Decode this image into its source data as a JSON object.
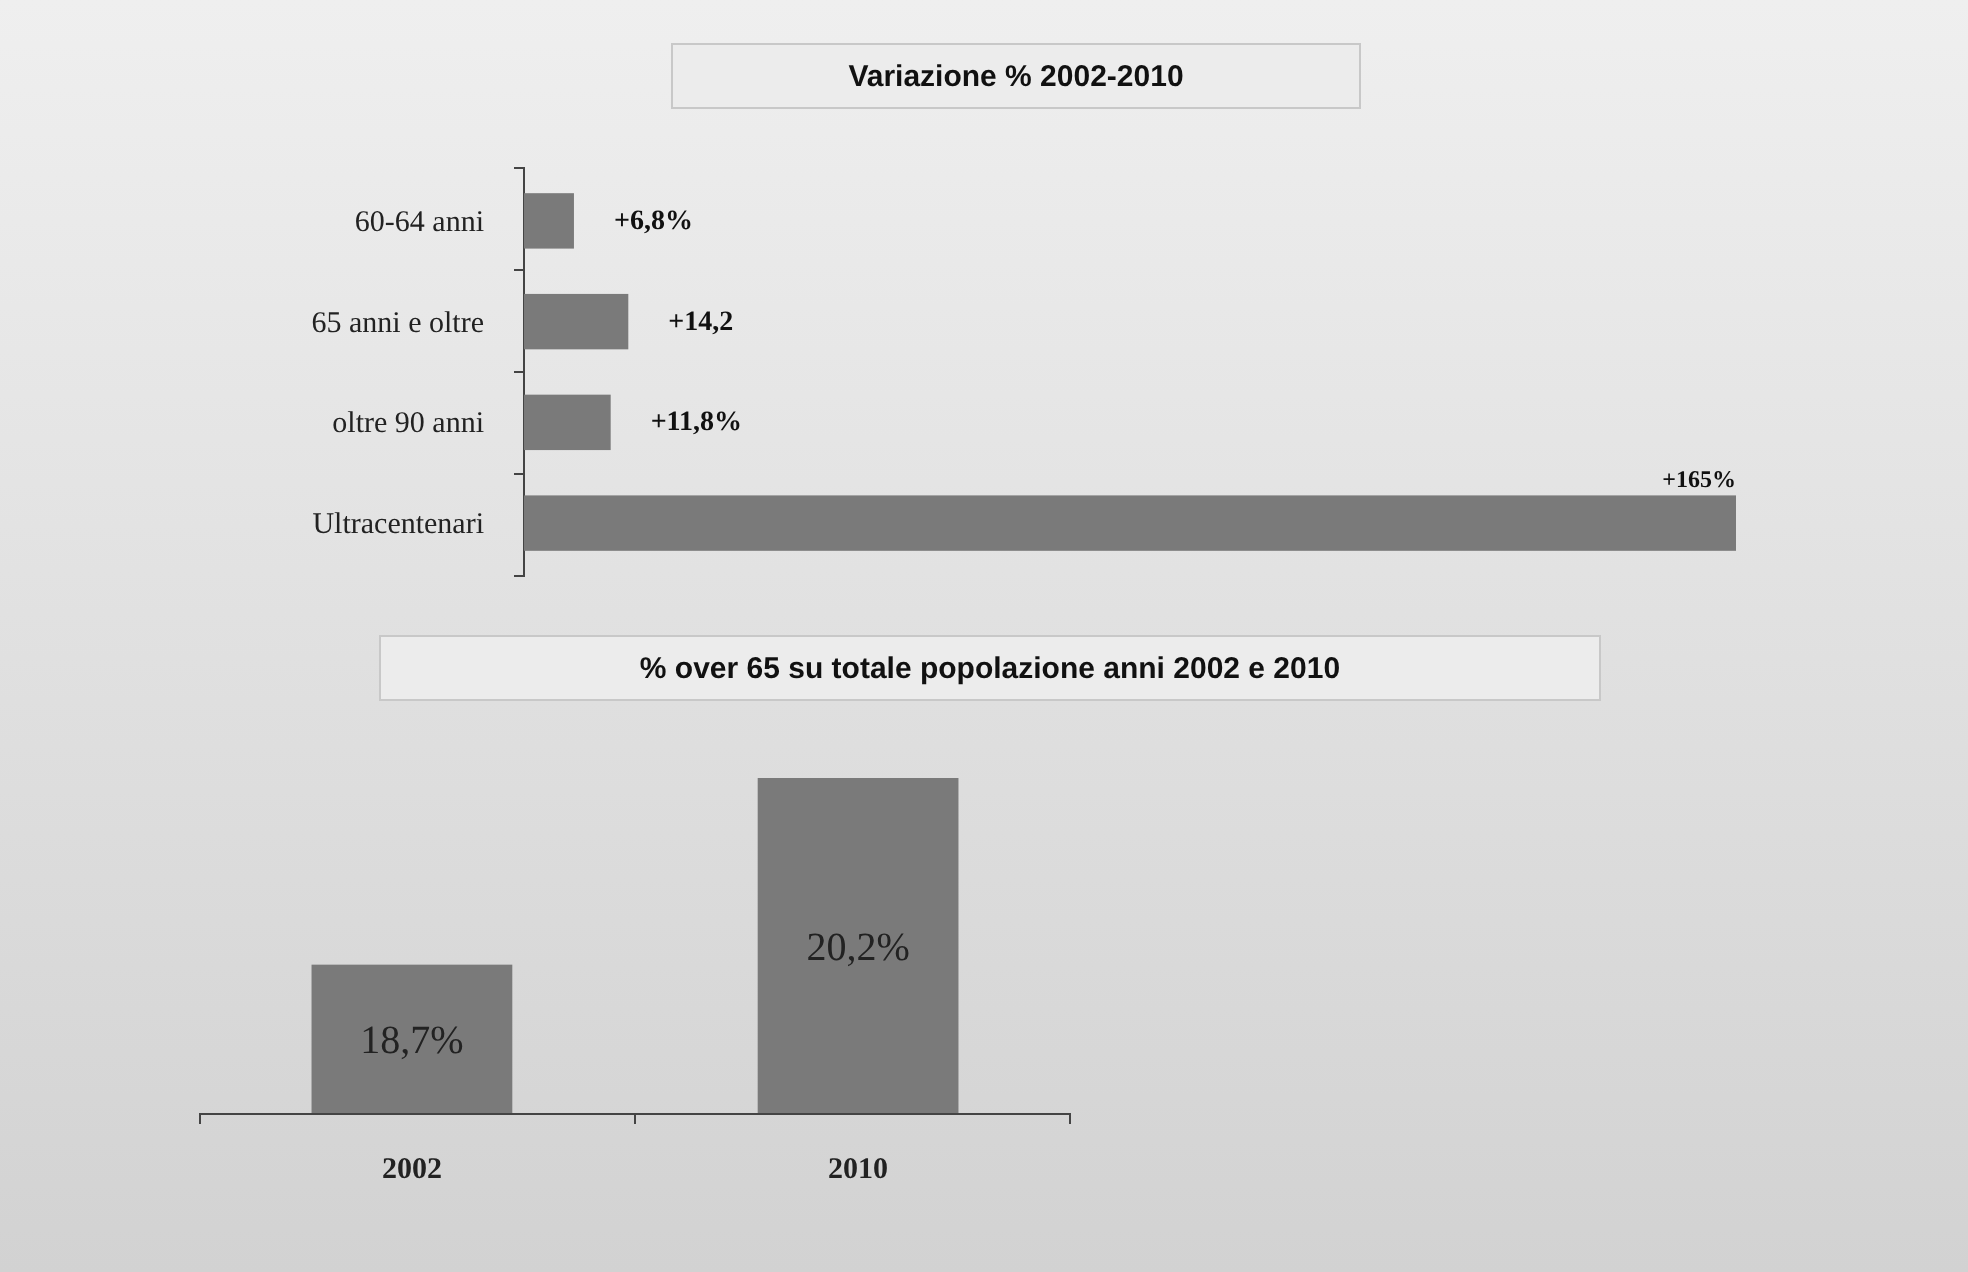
{
  "chart_data": [
    {
      "type": "bar",
      "orientation": "horizontal",
      "title": "Variazione % 2002-2010",
      "categories": [
        "60-64 anni",
        "65 anni e oltre",
        "oltre 90 anni",
        "Ultracentenari"
      ],
      "series": [
        {
          "color": "#7a7a7a",
          "values": [
            6.8,
            14.2,
            11.8,
            165
          ],
          "value_labels": [
            "+6,8%",
            "+14,2",
            "+11,8%",
            "+165%"
          ]
        }
      ]
    },
    {
      "type": "bar",
      "title": "% over 65 su totale popolazione anni 2002 e 2010",
      "categories": [
        "2002",
        "2010"
      ],
      "ylim": [
        17.5,
        20.2
      ],
      "tick_labels": "x",
      "series": [
        {
          "color": "#7a7a7a",
          "values": [
            18.7,
            20.2
          ],
          "value_labels": [
            "18,7%",
            "20,2%"
          ]
        }
      ]
    }
  ]
}
